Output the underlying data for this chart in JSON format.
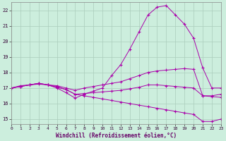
{
  "xlabel": "Windchill (Refroidissement éolien,°C)",
  "bg_color": "#cceedd",
  "grid_color": "#aaccbb",
  "line_color": "#aa00aa",
  "x_ticks": [
    0,
    1,
    2,
    3,
    4,
    5,
    6,
    7,
    8,
    9,
    10,
    11,
    12,
    13,
    14,
    15,
    16,
    17,
    18,
    19,
    20,
    21,
    22,
    23
  ],
  "y_ticks": [
    15,
    16,
    17,
    18,
    19,
    20,
    21,
    22
  ],
  "xlim": [
    0,
    23
  ],
  "ylim": [
    14.7,
    22.5
  ],
  "line1_y": [
    17.0,
    17.1,
    17.2,
    17.25,
    17.2,
    17.1,
    16.9,
    16.6,
    16.5,
    16.4,
    16.3,
    16.2,
    16.1,
    16.0,
    15.9,
    15.8,
    15.7,
    15.6,
    15.5,
    15.4,
    15.3,
    14.85,
    14.85,
    15.0
  ],
  "line2_y": [
    17.0,
    17.1,
    17.2,
    17.3,
    17.2,
    17.15,
    17.0,
    16.85,
    17.0,
    17.1,
    17.2,
    17.3,
    17.4,
    17.6,
    17.8,
    18.0,
    18.1,
    18.15,
    18.2,
    18.25,
    18.2,
    16.5,
    16.5,
    16.6
  ],
  "line3_y": [
    17.0,
    17.15,
    17.2,
    17.3,
    17.2,
    17.05,
    16.9,
    16.6,
    16.65,
    16.7,
    16.75,
    16.8,
    16.85,
    16.95,
    17.05,
    17.2,
    17.2,
    17.15,
    17.1,
    17.05,
    17.0,
    16.5,
    16.45,
    16.4
  ],
  "line4_y": [
    17.0,
    17.1,
    17.2,
    17.3,
    17.2,
    17.0,
    16.7,
    16.35,
    16.6,
    16.8,
    17.0,
    17.8,
    18.5,
    19.5,
    20.6,
    21.7,
    22.2,
    22.3,
    21.7,
    21.1,
    20.2,
    18.3,
    17.0,
    17.0
  ]
}
